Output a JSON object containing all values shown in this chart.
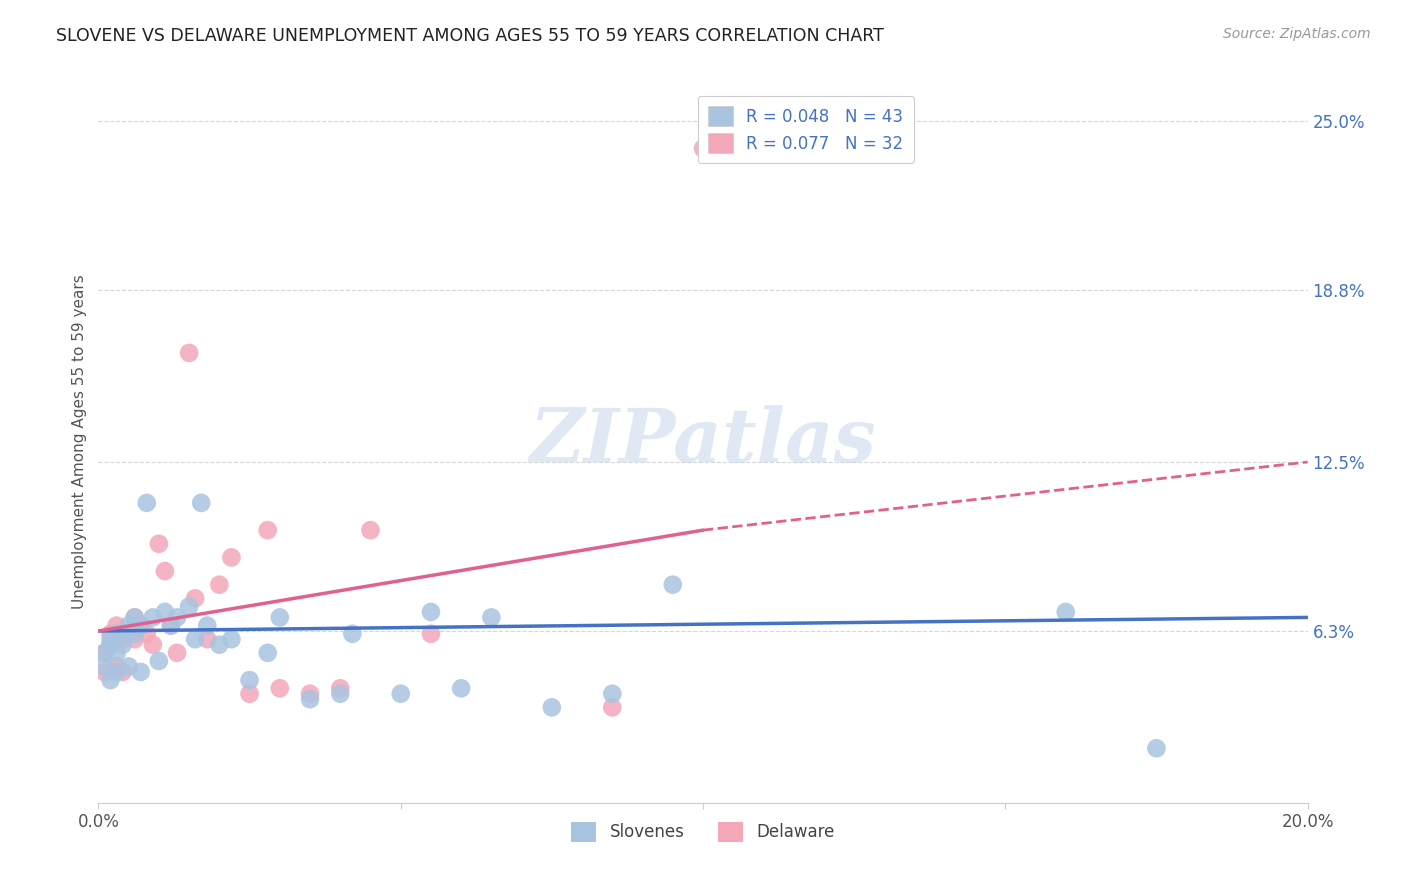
{
  "title": "SLOVENE VS DELAWARE UNEMPLOYMENT AMONG AGES 55 TO 59 YEARS CORRELATION CHART",
  "source": "Source: ZipAtlas.com",
  "ylabel": "Unemployment Among Ages 55 to 59 years",
  "xlim": [
    0.0,
    0.2
  ],
  "ylim": [
    0.0,
    0.265
  ],
  "xtick_positions": [
    0.0,
    0.05,
    0.1,
    0.15,
    0.2
  ],
  "xtick_labels": [
    "0.0%",
    "",
    "",
    "",
    "20.0%"
  ],
  "ytick_labels_right": [
    "6.3%",
    "12.5%",
    "18.8%",
    "25.0%"
  ],
  "yticks_right": [
    0.063,
    0.125,
    0.188,
    0.25
  ],
  "slovenes_x": [
    0.001,
    0.001,
    0.002,
    0.002,
    0.002,
    0.003,
    0.003,
    0.003,
    0.004,
    0.004,
    0.005,
    0.005,
    0.006,
    0.006,
    0.007,
    0.007,
    0.008,
    0.009,
    0.01,
    0.011,
    0.012,
    0.013,
    0.015,
    0.016,
    0.017,
    0.018,
    0.02,
    0.022,
    0.025,
    0.028,
    0.03,
    0.035,
    0.04,
    0.042,
    0.05,
    0.055,
    0.06,
    0.065,
    0.075,
    0.085,
    0.095,
    0.16,
    0.175
  ],
  "slovenes_y": [
    0.05,
    0.055,
    0.06,
    0.058,
    0.045,
    0.055,
    0.062,
    0.048,
    0.058,
    0.062,
    0.065,
    0.05,
    0.068,
    0.062,
    0.048,
    0.065,
    0.11,
    0.068,
    0.052,
    0.07,
    0.065,
    0.068,
    0.072,
    0.06,
    0.11,
    0.065,
    0.058,
    0.06,
    0.045,
    0.055,
    0.068,
    0.038,
    0.04,
    0.062,
    0.04,
    0.07,
    0.042,
    0.068,
    0.035,
    0.04,
    0.08,
    0.07,
    0.02
  ],
  "delaware_x": [
    0.001,
    0.001,
    0.002,
    0.002,
    0.003,
    0.003,
    0.004,
    0.004,
    0.005,
    0.006,
    0.006,
    0.007,
    0.008,
    0.009,
    0.01,
    0.011,
    0.012,
    0.013,
    0.015,
    0.016,
    0.018,
    0.02,
    0.022,
    0.025,
    0.028,
    0.03,
    0.035,
    0.04,
    0.045,
    0.055,
    0.085,
    0.1
  ],
  "delaware_y": [
    0.048,
    0.055,
    0.062,
    0.058,
    0.065,
    0.05,
    0.06,
    0.048,
    0.062,
    0.06,
    0.068,
    0.065,
    0.062,
    0.058,
    0.095,
    0.085,
    0.065,
    0.055,
    0.165,
    0.075,
    0.06,
    0.08,
    0.09,
    0.04,
    0.1,
    0.042,
    0.04,
    0.042,
    0.1,
    0.062,
    0.035,
    0.24
  ],
  "slovenes_color": "#a8c4e0",
  "delaware_color": "#f4a7b9",
  "slovenes_line_color": "#4472c4",
  "delaware_line_color": "#e06090",
  "slovenes_label": "Slovenes",
  "delaware_label": "Delaware",
  "legend_r_slovenes": "R = 0.048",
  "legend_n_slovenes": "N = 43",
  "legend_r_delaware": "R = 0.077",
  "legend_n_delaware": "N = 32",
  "background_color": "#ffffff",
  "grid_color": "#cccccc",
  "title_color": "#222222",
  "axis_label_color": "#555555",
  "right_tick_color": "#4472c4",
  "watermark_text": "ZIPatlas",
  "source_text": "Source: ZipAtlas.com"
}
